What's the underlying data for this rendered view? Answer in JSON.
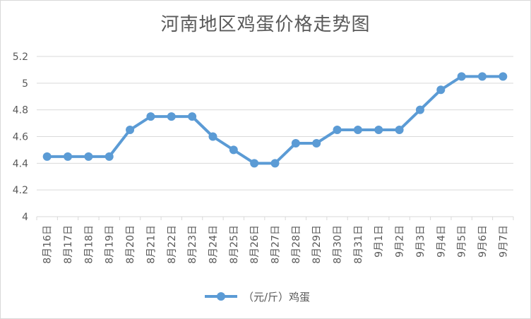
{
  "chart_data": {
    "type": "line",
    "title": "河南地区鸡蛋价格走势图",
    "categories": [
      "8月16日",
      "8月17日",
      "8月18日",
      "8月19日",
      "8月20日",
      "8月21日",
      "8月22日",
      "8月23日",
      "8月24日",
      "8月25日",
      "8月26日",
      "8月27日",
      "8月28日",
      "8月29日",
      "8月30日",
      "8月31日",
      "9月1日",
      "9月2日",
      "9月3日",
      "9月4日",
      "9月5日",
      "9月6日",
      "9月7日"
    ],
    "series": [
      {
        "name": "（元/斤）鸡蛋",
        "values": [
          4.45,
          4.45,
          4.45,
          4.45,
          4.65,
          4.75,
          4.75,
          4.75,
          4.6,
          4.5,
          4.4,
          4.4,
          4.55,
          4.55,
          4.65,
          4.65,
          4.65,
          4.65,
          4.8,
          4.95,
          5.05,
          5.05,
          5.05
        ]
      }
    ],
    "ylim": [
      4,
      5.2
    ],
    "yticks": [
      "4",
      "4.2",
      "4.4",
      "4.6",
      "4.8",
      "5",
      "5.2"
    ],
    "ytick_values": [
      4,
      4.2,
      4.4,
      4.6,
      4.8,
      5,
      5.2
    ],
    "grid": true,
    "legend_position": "bottom",
    "colors": {
      "series": "#5b9bd5",
      "grid": "#d9d9d9",
      "text": "#595959"
    }
  }
}
